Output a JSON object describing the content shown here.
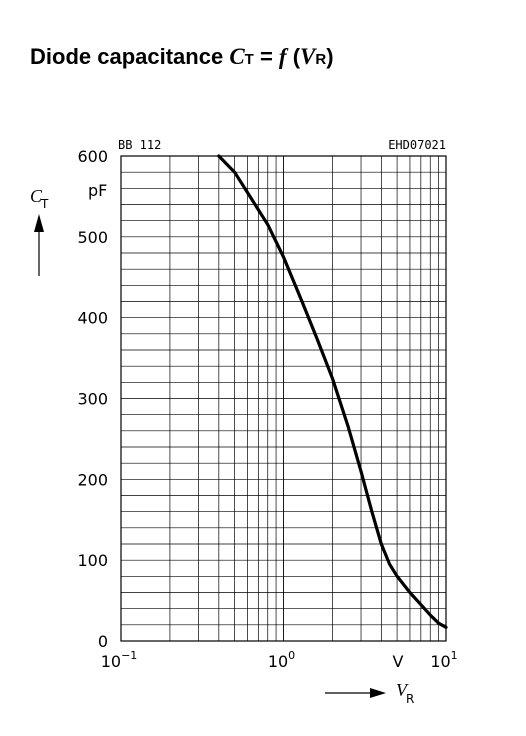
{
  "heading": {
    "prefix": "Diode capacitance ",
    "ct_symbol": "C",
    "ct_subscript": "T",
    "equals": " = ",
    "f_symbol": "f",
    "open_paren": " (",
    "vr_symbol": "V",
    "vr_subscript": "R",
    "close_paren": ")"
  },
  "chart_data": {
    "type": "line",
    "part_label": "BB 112",
    "figure_code": "EHD07021",
    "x_scale": "log",
    "xlim": [
      0.1,
      10
    ],
    "ylim": [
      0,
      600
    ],
    "y_unit": "pF",
    "x_unit": "V",
    "ylabel": {
      "symbol": "C",
      "subscript": "T"
    },
    "xlabel": {
      "symbol": "V",
      "subscript": "R"
    },
    "y_ticks": [
      "0",
      "100",
      "200",
      "300",
      "400",
      "500",
      "600"
    ],
    "x_ticks": [
      {
        "base": "10",
        "exp": "−1"
      },
      {
        "base": "10",
        "exp": "0"
      },
      {
        "base": "10",
        "exp": "1"
      }
    ],
    "grid": true,
    "series": [
      {
        "x": [
          0.4,
          0.5,
          0.6,
          0.8,
          1.0,
          1.3,
          1.6,
          2.0,
          2.5,
          3.0,
          3.5,
          4.0,
          4.5,
          5.0,
          6.0,
          7.0,
          8.0,
          9.0,
          10.0
        ],
        "y": [
          600,
          580,
          555,
          515,
          475,
          420,
          375,
          325,
          265,
          210,
          160,
          120,
          95,
          80,
          60,
          45,
          32,
          22,
          17
        ]
      }
    ]
  }
}
